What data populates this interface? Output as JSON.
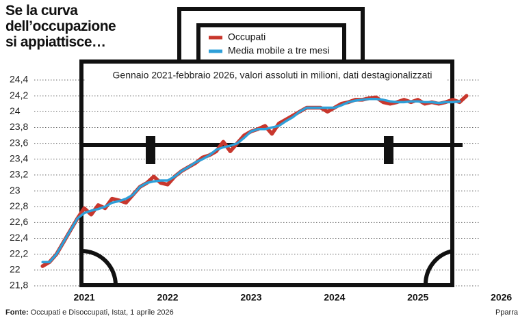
{
  "chart_data": {
    "type": "line",
    "title": "Se la curva dell’occupazione si appiattisce…",
    "subtitle": "Gennaio 2021-febbraio 2026, valori assoluti in milioni, dati destagionalizzati",
    "source_label": "Fonte:",
    "source": "Occupati e Disoccupati, Istat, 1 aprile 2026",
    "credit": "Pparra",
    "x": [
      2021,
      2021.083,
      2021.167,
      2021.25,
      2021.333,
      2021.417,
      2021.5,
      2021.583,
      2021.667,
      2021.75,
      2021.833,
      2021.917,
      2022,
      2022.083,
      2022.167,
      2022.25,
      2022.333,
      2022.417,
      2022.5,
      2022.583,
      2022.667,
      2022.75,
      2022.833,
      2022.917,
      2023,
      2023.083,
      2023.167,
      2023.25,
      2023.333,
      2023.417,
      2023.5,
      2023.583,
      2023.667,
      2023.75,
      2023.833,
      2023.917,
      2024,
      2024.083,
      2024.167,
      2024.25,
      2024.333,
      2024.417,
      2024.5,
      2024.583,
      2024.667,
      2024.75,
      2024.833,
      2024.917,
      2025,
      2025.083,
      2025.167,
      2025.25,
      2025.333,
      2025.417,
      2025.5,
      2025.583,
      2025.667,
      2025.75,
      2025.833,
      2025.917,
      2026,
      2026.083
    ],
    "series": [
      {
        "name": "Occupati",
        "color": "#c8372d",
        "values": [
          22.05,
          22.1,
          22.2,
          22.35,
          22.5,
          22.65,
          22.78,
          22.7,
          22.82,
          22.78,
          22.9,
          22.88,
          22.85,
          22.95,
          23.05,
          23.1,
          23.18,
          23.1,
          23.08,
          23.18,
          23.25,
          23.3,
          23.35,
          23.42,
          23.45,
          23.5,
          23.62,
          23.5,
          23.6,
          23.7,
          23.75,
          23.78,
          23.82,
          23.72,
          23.85,
          23.9,
          23.95,
          24.0,
          24.05,
          24.05,
          24.05,
          24.0,
          24.05,
          24.1,
          24.12,
          24.15,
          24.15,
          24.17,
          24.18,
          24.12,
          24.1,
          24.12,
          24.15,
          24.12,
          24.15,
          24.1,
          24.12,
          24.1,
          24.12,
          24.15,
          24.12,
          24.2
        ]
      },
      {
        "name": "Media mobile a tre mesi",
        "color": "#2e9fd8",
        "values": [
          22.1,
          22.1,
          22.2,
          22.35,
          22.5,
          22.65,
          22.72,
          22.75,
          22.77,
          22.8,
          22.85,
          22.87,
          22.9,
          22.95,
          23.05,
          23.1,
          23.12,
          23.13,
          23.13,
          23.18,
          23.25,
          23.3,
          23.36,
          23.4,
          23.45,
          23.52,
          23.55,
          23.57,
          23.6,
          23.67,
          23.75,
          23.78,
          23.78,
          23.8,
          23.82,
          23.88,
          23.93,
          24.0,
          24.05,
          24.05,
          24.05,
          24.05,
          24.05,
          24.08,
          24.12,
          24.14,
          24.15,
          24.16,
          24.16,
          24.15,
          24.13,
          24.12,
          24.12,
          24.13,
          24.13,
          24.12,
          24.12,
          24.11,
          24.12,
          24.12,
          24.13,
          null
        ]
      }
    ],
    "xlim": [
      2020.9,
      2026.7
    ],
    "xticks": [
      {
        "value": 2021.5,
        "label": "2021"
      },
      {
        "value": 2022.5,
        "label": "2022"
      },
      {
        "value": 2023.5,
        "label": "2023"
      },
      {
        "value": 2024.5,
        "label": "2024"
      },
      {
        "value": 2025.5,
        "label": "2025"
      },
      {
        "value": 2026.5,
        "label": "2026"
      }
    ],
    "ylim": [
      21.8,
      24.5
    ],
    "yticks": [
      {
        "value": 21.8,
        "label": "21,8"
      },
      22,
      {
        "value": 22.2,
        "label": "22,2"
      },
      {
        "value": 22.4,
        "label": "22,4"
      },
      {
        "value": 22.6,
        "label": "22,6"
      },
      {
        "value": 22.8,
        "label": "22,8"
      },
      23,
      {
        "value": 23.2,
        "label": "23,2"
      },
      {
        "value": 23.4,
        "label": "23,4"
      },
      {
        "value": 23.6,
        "label": "23,6"
      },
      {
        "value": 23.8,
        "label": "23,8"
      },
      24,
      {
        "value": 24.2,
        "label": "24,2"
      },
      {
        "value": 24.4,
        "label": "24,4"
      }
    ],
    "grid": true
  }
}
